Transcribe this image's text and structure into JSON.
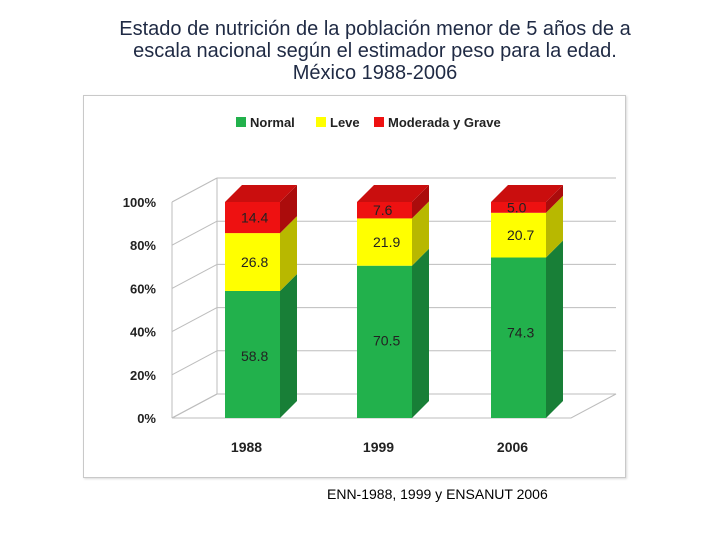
{
  "title_lines": [
    "Estado de nutrición de la población menor de 5 años de a",
    "escala nacional según el estimador peso para la edad.",
    "México 1988-2006"
  ],
  "source": "ENN-1988, 1999  y ENSANUT 2006",
  "colors": {
    "Normal": "#22b14c",
    "Leve": "#ffff00",
    "Moderada y Grave": "#ee1111"
  },
  "chart_data": {
    "type": "bar",
    "stacked": true,
    "percent_axis": true,
    "categories": [
      "1988",
      "1999",
      "2006"
    ],
    "series": [
      {
        "name": "Normal",
        "values": [
          58.8,
          70.5,
          74.3
        ]
      },
      {
        "name": "Leve",
        "values": [
          26.8,
          21.9,
          20.7
        ]
      },
      {
        "name": "Moderada y Grave",
        "values": [
          14.4,
          7.6,
          5.0
        ]
      }
    ],
    "y_ticks": [
      "0%",
      "20%",
      "40%",
      "60%",
      "80%",
      "100%"
    ],
    "ylim": [
      0,
      100
    ],
    "legend_position": "top",
    "grid": true
  }
}
